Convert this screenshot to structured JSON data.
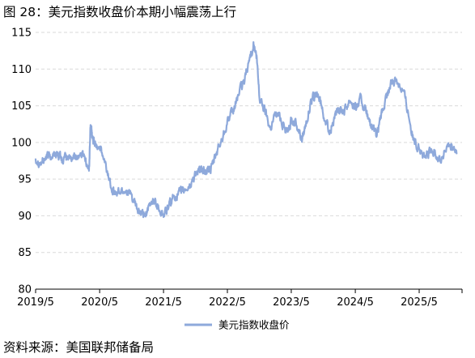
{
  "figure": {
    "title": "图 28：美元指数收盘价本期小幅震荡上行",
    "source": "资料来源：美国联邦储备局"
  },
  "colors": {
    "series_line": "#8ea9db",
    "grid": "#d9d9d9",
    "axis": "#000000"
  },
  "chart_data": {
    "type": "line",
    "title": "",
    "xlabel": "",
    "ylabel": "",
    "ylim": [
      80,
      115
    ],
    "y_ticks": [
      80,
      85,
      90,
      95,
      100,
      105,
      110,
      115
    ],
    "x_range": [
      "2019-05-01",
      "2026-01-01"
    ],
    "x_ticks": [
      "2019/5",
      "2020/5",
      "2021/5",
      "2022/5",
      "2023/5",
      "2024/5",
      "2025/5"
    ],
    "x_tick_dates": [
      "2019-05-01",
      "2020-05-01",
      "2021-05-01",
      "2022-05-01",
      "2023-05-01",
      "2024-05-01",
      "2025-05-01"
    ],
    "grid": "horizontal dashed",
    "legend_position": "bottom-center",
    "series": [
      {
        "name": "美元指数收盘价",
        "x": [
          "2019-05-01",
          "2019-06-01",
          "2019-07-01",
          "2019-08-01",
          "2019-09-01",
          "2019-10-01",
          "2019-11-01",
          "2019-12-01",
          "2020-01-01",
          "2020-02-01",
          "2020-03-01",
          "2020-03-10",
          "2020-03-20",
          "2020-04-01",
          "2020-05-01",
          "2020-06-01",
          "2020-07-01",
          "2020-08-01",
          "2020-09-01",
          "2020-10-01",
          "2020-11-01",
          "2020-12-01",
          "2021-01-01",
          "2021-02-01",
          "2021-03-01",
          "2021-04-01",
          "2021-05-01",
          "2021-06-01",
          "2021-07-01",
          "2021-08-01",
          "2021-09-01",
          "2021-10-01",
          "2021-11-01",
          "2021-12-01",
          "2022-01-01",
          "2022-02-01",
          "2022-03-01",
          "2022-04-01",
          "2022-05-01",
          "2022-06-01",
          "2022-07-01",
          "2022-08-01",
          "2022-09-01",
          "2022-09-27",
          "2022-10-15",
          "2022-11-01",
          "2022-12-01",
          "2023-01-01",
          "2023-02-01",
          "2023-03-01",
          "2023-04-01",
          "2023-05-01",
          "2023-06-01",
          "2023-07-01",
          "2023-08-01",
          "2023-09-01",
          "2023-10-01",
          "2023-11-01",
          "2023-12-01",
          "2024-01-01",
          "2024-02-01",
          "2024-03-01",
          "2024-04-01",
          "2024-05-01",
          "2024-06-01",
          "2024-07-01",
          "2024-08-01",
          "2024-09-01",
          "2024-10-01",
          "2024-11-01",
          "2024-12-01",
          "2025-01-01",
          "2025-02-01",
          "2025-03-01",
          "2025-04-01",
          "2025-05-01",
          "2025-06-01",
          "2025-07-01",
          "2025-08-01",
          "2025-09-01",
          "2025-10-01",
          "2025-11-01",
          "2025-12-01"
        ],
        "values": [
          97.8,
          97.2,
          98.0,
          98.3,
          98.5,
          97.6,
          97.9,
          98.0,
          98.2,
          98.5,
          96.0,
          102.5,
          100.5,
          100.0,
          99.5,
          97.0,
          94.5,
          93.0,
          93.4,
          93.5,
          92.5,
          90.8,
          90.0,
          90.6,
          92.3,
          91.3,
          90.0,
          91.3,
          92.7,
          93.0,
          93.5,
          94.1,
          95.9,
          96.0,
          96.2,
          96.5,
          98.6,
          100.5,
          103.0,
          104.0,
          106.5,
          108.0,
          111.0,
          113.5,
          111.5,
          106.0,
          104.5,
          102.0,
          104.0,
          103.5,
          101.5,
          103.0,
          102.5,
          100.5,
          103.5,
          106.0,
          106.5,
          104.0,
          101.5,
          103.0,
          104.5,
          104.5,
          106.0,
          104.7,
          105.9,
          104.2,
          102.0,
          100.8,
          104.0,
          106.5,
          108.5,
          108.3,
          107.0,
          104.0,
          100.0,
          99.5,
          97.8,
          98.8,
          98.5,
          97.6,
          99.0,
          99.6,
          98.5
        ]
      }
    ]
  }
}
